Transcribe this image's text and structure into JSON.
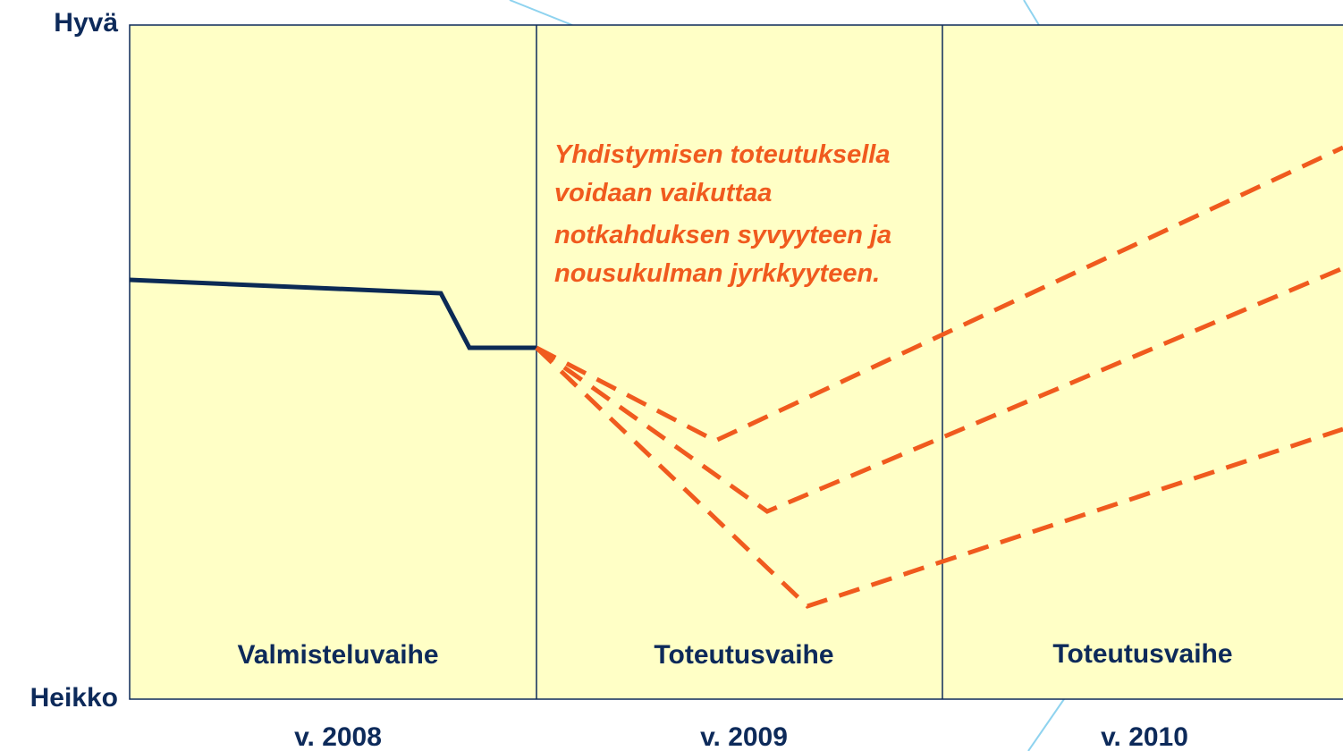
{
  "axis": {
    "top": "Hyvä",
    "bottom": "Heikko"
  },
  "phases": [
    "Valmisteluvaihe",
    "Toteutusvaihe",
    "Toteutusvaihe"
  ],
  "years": [
    "v. 2008",
    "v. 2009",
    "v. 2010"
  ],
  "annotation": [
    "Yhdistymisen toteutuksella",
    "voidaan vaikuttaa",
    "notkahduksen syvyyteen ja",
    "nousukulman jyrkkyyteen."
  ]
}
